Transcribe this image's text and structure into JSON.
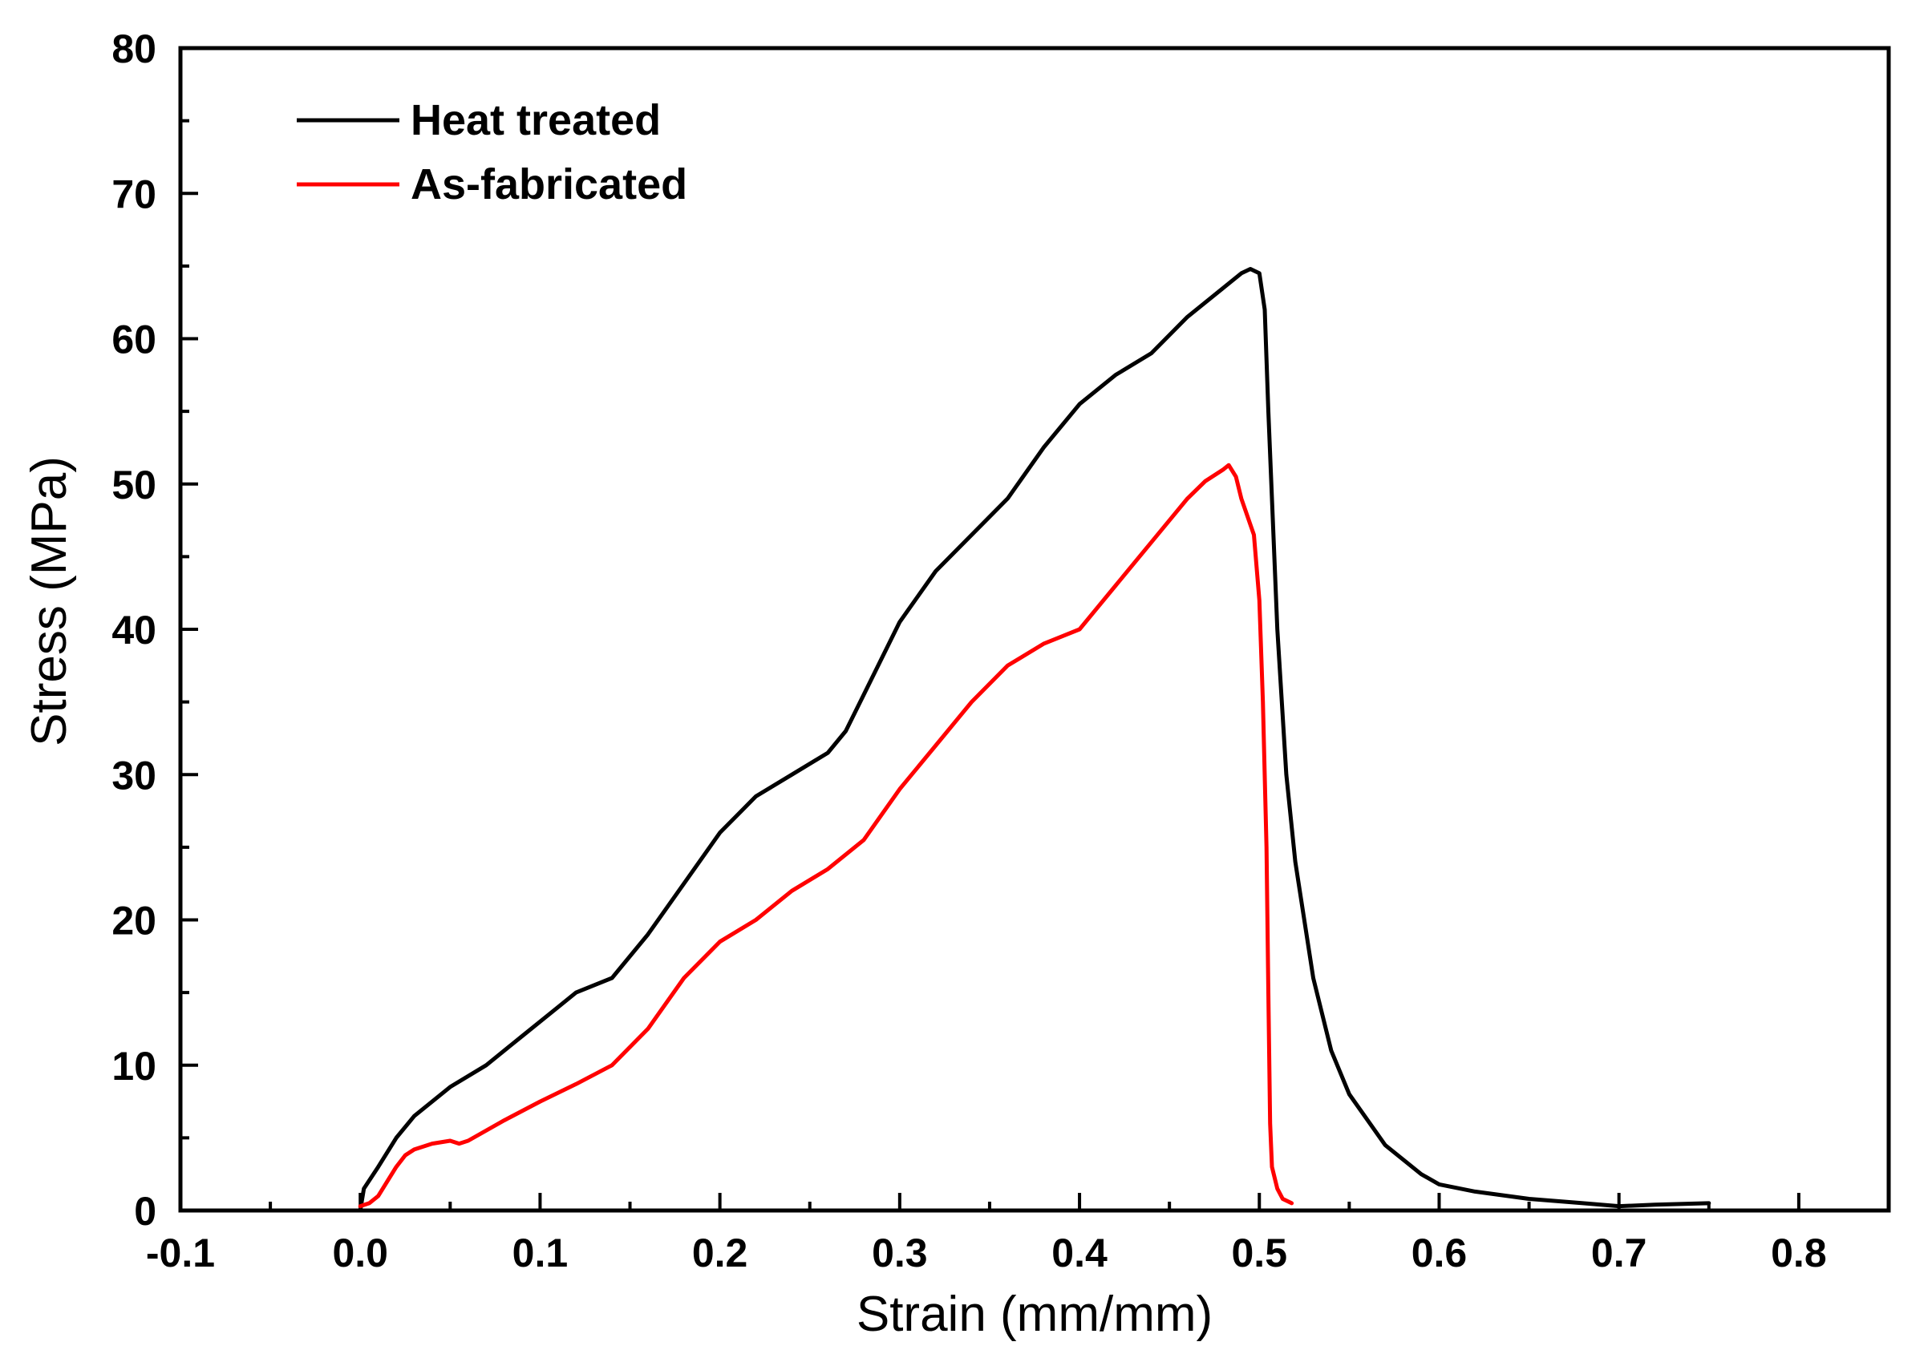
{
  "chart_data": {
    "type": "line",
    "title": "",
    "xlabel": "Strain (mm/mm)",
    "ylabel": "Stress (MPa)",
    "xlim": [
      -0.1,
      0.85
    ],
    "ylim": [
      0,
      80
    ],
    "x_ticks": [
      -0.1,
      0.0,
      0.1,
      0.2,
      0.3,
      0.4,
      0.5,
      0.6,
      0.7,
      0.8
    ],
    "x_tick_labels": [
      "-0.1",
      "0.0",
      "0.1",
      "0.2",
      "0.3",
      "0.4",
      "0.5",
      "0.6",
      "0.7",
      "0.8"
    ],
    "y_ticks": [
      0,
      10,
      20,
      30,
      40,
      50,
      60,
      70,
      80
    ],
    "y_tick_labels": [
      "0",
      "10",
      "20",
      "30",
      "40",
      "50",
      "60",
      "70",
      "80"
    ],
    "grid": false,
    "legend_position": "top-left",
    "series": [
      {
        "name": "Heat treated",
        "color": "#000000",
        "x": [
          0.0,
          0.002,
          0.01,
          0.02,
          0.03,
          0.05,
          0.07,
          0.09,
          0.11,
          0.12,
          0.14,
          0.16,
          0.18,
          0.2,
          0.22,
          0.24,
          0.26,
          0.27,
          0.28,
          0.3,
          0.32,
          0.34,
          0.36,
          0.38,
          0.4,
          0.42,
          0.44,
          0.46,
          0.48,
          0.49,
          0.495,
          0.5,
          0.503,
          0.505,
          0.51,
          0.515,
          0.52,
          0.53,
          0.54,
          0.55,
          0.57,
          0.59,
          0.6,
          0.62,
          0.65,
          0.68,
          0.7,
          0.72,
          0.75
        ],
        "y": [
          0,
          1.5,
          3.0,
          5.0,
          6.5,
          8.5,
          10.0,
          12.0,
          14.0,
          15.0,
          16.0,
          19.0,
          22.5,
          26.0,
          28.5,
          30.0,
          31.5,
          33.0,
          35.5,
          40.5,
          44.0,
          46.5,
          49.0,
          52.5,
          55.5,
          57.5,
          59.0,
          61.5,
          63.5,
          64.5,
          64.8,
          64.5,
          62.0,
          55.0,
          40.0,
          30.0,
          24.0,
          16.0,
          11.0,
          8.0,
          4.5,
          2.5,
          1.8,
          1.3,
          0.8,
          0.5,
          0.3,
          0.4,
          0.5
        ]
      },
      {
        "name": "As-fabricated",
        "color": "#ff0000",
        "x": [
          0.0,
          0.005,
          0.01,
          0.015,
          0.02,
          0.025,
          0.03,
          0.04,
          0.05,
          0.055,
          0.06,
          0.08,
          0.1,
          0.12,
          0.14,
          0.16,
          0.18,
          0.2,
          0.22,
          0.24,
          0.26,
          0.27,
          0.28,
          0.3,
          0.32,
          0.34,
          0.36,
          0.38,
          0.39,
          0.4,
          0.42,
          0.44,
          0.46,
          0.47,
          0.48,
          0.483,
          0.487,
          0.49,
          0.497,
          0.5,
          0.502,
          0.504,
          0.505,
          0.506,
          0.507,
          0.51,
          0.513,
          0.518
        ],
        "y": [
          0.3,
          0.5,
          1.0,
          2.0,
          3.0,
          3.8,
          4.2,
          4.6,
          4.8,
          4.6,
          4.8,
          6.2,
          7.5,
          8.7,
          10.0,
          12.5,
          16.0,
          18.5,
          20.0,
          22.0,
          23.5,
          24.5,
          25.5,
          29.0,
          32.0,
          35.0,
          37.5,
          39.0,
          39.5,
          40.0,
          43.0,
          46.0,
          49.0,
          50.2,
          51.0,
          51.3,
          50.5,
          49.0,
          46.5,
          42.0,
          35.0,
          25.0,
          15.0,
          6.0,
          3.0,
          1.5,
          0.8,
          0.5
        ]
      }
    ]
  }
}
